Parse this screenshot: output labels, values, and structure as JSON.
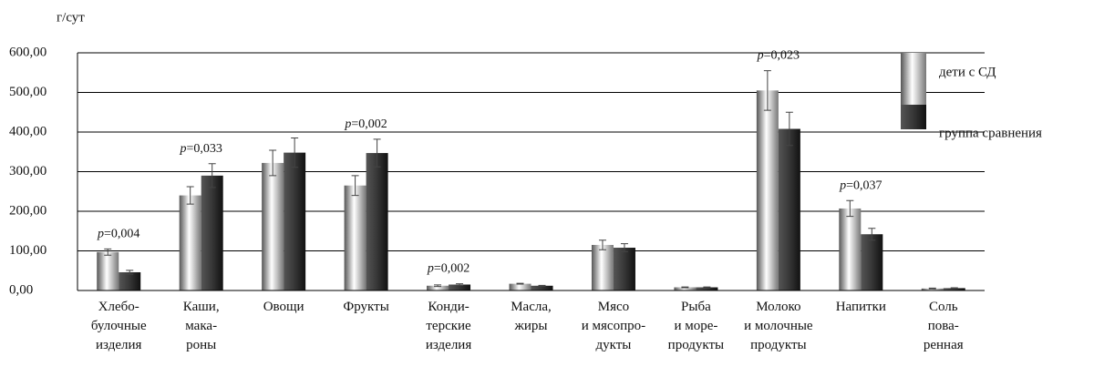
{
  "chart_data": {
    "type": "bar",
    "ylabel": "г/сут",
    "categories": [
      [
        "Хлебо-",
        "булочные",
        "изделия"
      ],
      [
        "Каши,",
        "мака-",
        "роны"
      ],
      [
        "Овощи"
      ],
      [
        "Фрукты"
      ],
      [
        "Конди-",
        "терские",
        "изделия"
      ],
      [
        "Масла,",
        "жиры"
      ],
      [
        "Мясо",
        "и мясопро-",
        "дукты"
      ],
      [
        "Рыба",
        "и море-",
        "продукты"
      ],
      [
        "Молоко",
        "и молочные",
        "продукты"
      ],
      [
        "Напитки"
      ],
      [
        "Соль",
        "пова-",
        "ренная"
      ]
    ],
    "series": [
      {
        "name": "дети с СД",
        "color": "#bdbdbd",
        "values": [
          97,
          240,
          322,
          265,
          12,
          17,
          115,
          8,
          505,
          207,
          5
        ],
        "errors": [
          8,
          22,
          32,
          25,
          2,
          1,
          12,
          1,
          50,
          20,
          1
        ]
      },
      {
        "name": "группа сравнения",
        "color": "#3a3a3a",
        "values": [
          46,
          290,
          348,
          347,
          15,
          12,
          108,
          8,
          408,
          142,
          6
        ],
        "errors": [
          5,
          30,
          37,
          35,
          2,
          1,
          10,
          1,
          42,
          15,
          1
        ]
      }
    ],
    "p_values": [
      "p=0,004",
      "p=0,033",
      null,
      "p=0,002",
      "p=0,002",
      null,
      null,
      null,
      "p=0,023",
      "p=0,037",
      null
    ],
    "ylim": [
      0,
      600
    ],
    "yticks": [
      {
        "value": 0,
        "label": "0,00"
      },
      {
        "value": 100,
        "label": "100,00"
      },
      {
        "value": 200,
        "label": "200,00"
      },
      {
        "value": 300,
        "label": "300,00"
      },
      {
        "value": 400,
        "label": "400,00"
      },
      {
        "value": 500,
        "label": "500,00"
      },
      {
        "value": 600,
        "label": "600,00"
      }
    ],
    "grid": true,
    "legend": "top-right"
  }
}
